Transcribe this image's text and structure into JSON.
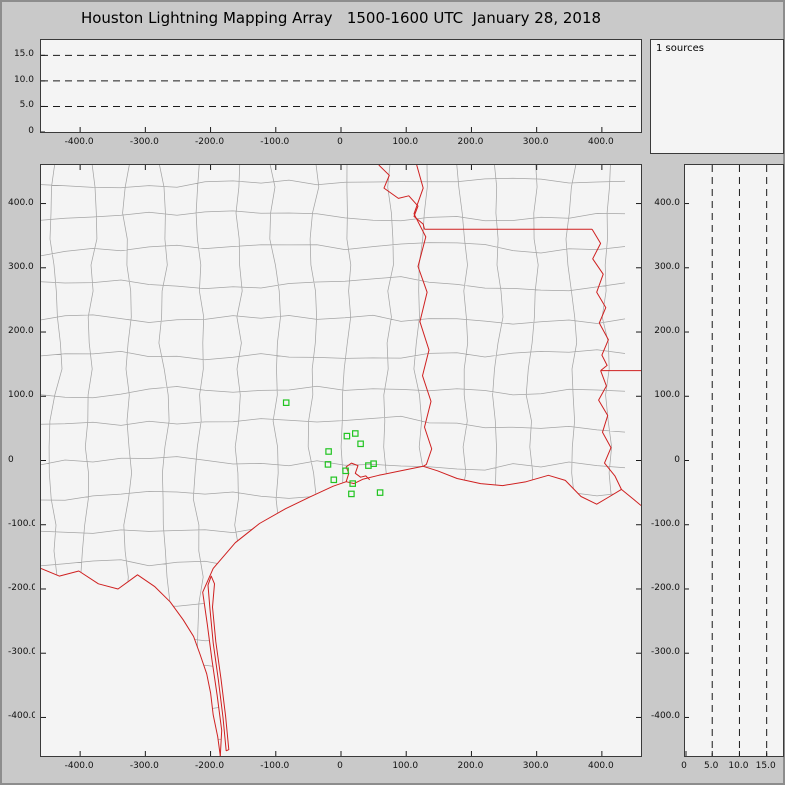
{
  "title": "Houston Lightning Mapping Array   1500-1600 UTC  January 28, 2018",
  "sources_label": "1 sources",
  "colors": {
    "background": "#c9c9c9",
    "panel_background": "#f4f4f4",
    "county_lines": "#a5a5a5",
    "state_borders": "#cf2020",
    "stations": "#21c421",
    "dashed_gridlines": "#1a1a1a"
  },
  "axes": {
    "km_range": [
      -460,
      460
    ],
    "alt_range": [
      0,
      18
    ],
    "km_ticks": [
      -400,
      -300,
      -200,
      -100,
      0,
      100,
      200,
      300,
      400
    ],
    "km_tick_labels": [
      "-400.0",
      "-300.0",
      "-200.0",
      "-100.0",
      "0",
      "100.0",
      "200.0",
      "300.0",
      "400.0"
    ],
    "km_ticks_desc": [
      400,
      300,
      200,
      100,
      0,
      -100,
      -200,
      -300,
      -400
    ],
    "km_tick_labels_desc": [
      "400.0",
      "300.0",
      "200.0",
      "100.0",
      "0",
      "-100.0",
      "-200.0",
      "-300.0",
      "-400.0"
    ],
    "alt_ticks": [
      0,
      5,
      10,
      15
    ],
    "alt_tick_labels": [
      "0",
      "5.0",
      "10.0",
      "15.0"
    ],
    "alt_ticks_desc": [
      15,
      10,
      5,
      0
    ],
    "alt_tick_labels_desc": [
      "15.0",
      "10.0",
      "5.0",
      "0"
    ],
    "alt_dashed": [
      5,
      10,
      15
    ]
  },
  "chart_data": [
    {
      "type": "scatter",
      "panel": "altitude-vs-east-west",
      "xlim": [
        -460,
        460
      ],
      "ylim": [
        0,
        18
      ],
      "x_ticks": [
        -400,
        -300,
        -200,
        -100,
        0,
        100,
        200,
        300,
        400
      ],
      "y_ticks": [
        0,
        5,
        10,
        15
      ],
      "dashed_lines_y": [
        5,
        10,
        15
      ],
      "points": [],
      "source_count": 1
    },
    {
      "type": "scatter",
      "panel": "plan-view-map",
      "xlim": [
        -460,
        460
      ],
      "ylim": [
        -460,
        460
      ],
      "x_ticks": [
        -400,
        -300,
        -200,
        -100,
        0,
        100,
        200,
        300,
        400
      ],
      "y_ticks": [
        -400,
        -300,
        -200,
        -100,
        0,
        100,
        200,
        300,
        400
      ],
      "map_layers": [
        "county-boundaries-gray",
        "state-borders-coastline-rivers-red"
      ],
      "series": [
        {
          "name": "lma-stations",
          "marker": "green-open-square",
          "points": [
            [
              -84,
              90
            ],
            [
              9,
              38
            ],
            [
              22,
              42
            ],
            [
              -19,
              14
            ],
            [
              30,
              26
            ],
            [
              -20,
              -6
            ],
            [
              7,
              -16
            ],
            [
              -11,
              -30
            ],
            [
              18,
              -36
            ],
            [
              42,
              -8
            ],
            [
              50,
              -5
            ],
            [
              16,
              -52
            ],
            [
              60,
              -50
            ]
          ]
        }
      ]
    },
    {
      "type": "scatter",
      "panel": "altitude-vs-north-south",
      "xlim": [
        0,
        18
      ],
      "ylim": [
        -460,
        460
      ],
      "x_ticks": [
        0,
        5,
        10,
        15
      ],
      "y_ticks": [
        -400,
        -300,
        -200,
        -100,
        0,
        100,
        200,
        300,
        400
      ],
      "dashed_lines_x": [
        5,
        10,
        15
      ],
      "points": []
    }
  ]
}
